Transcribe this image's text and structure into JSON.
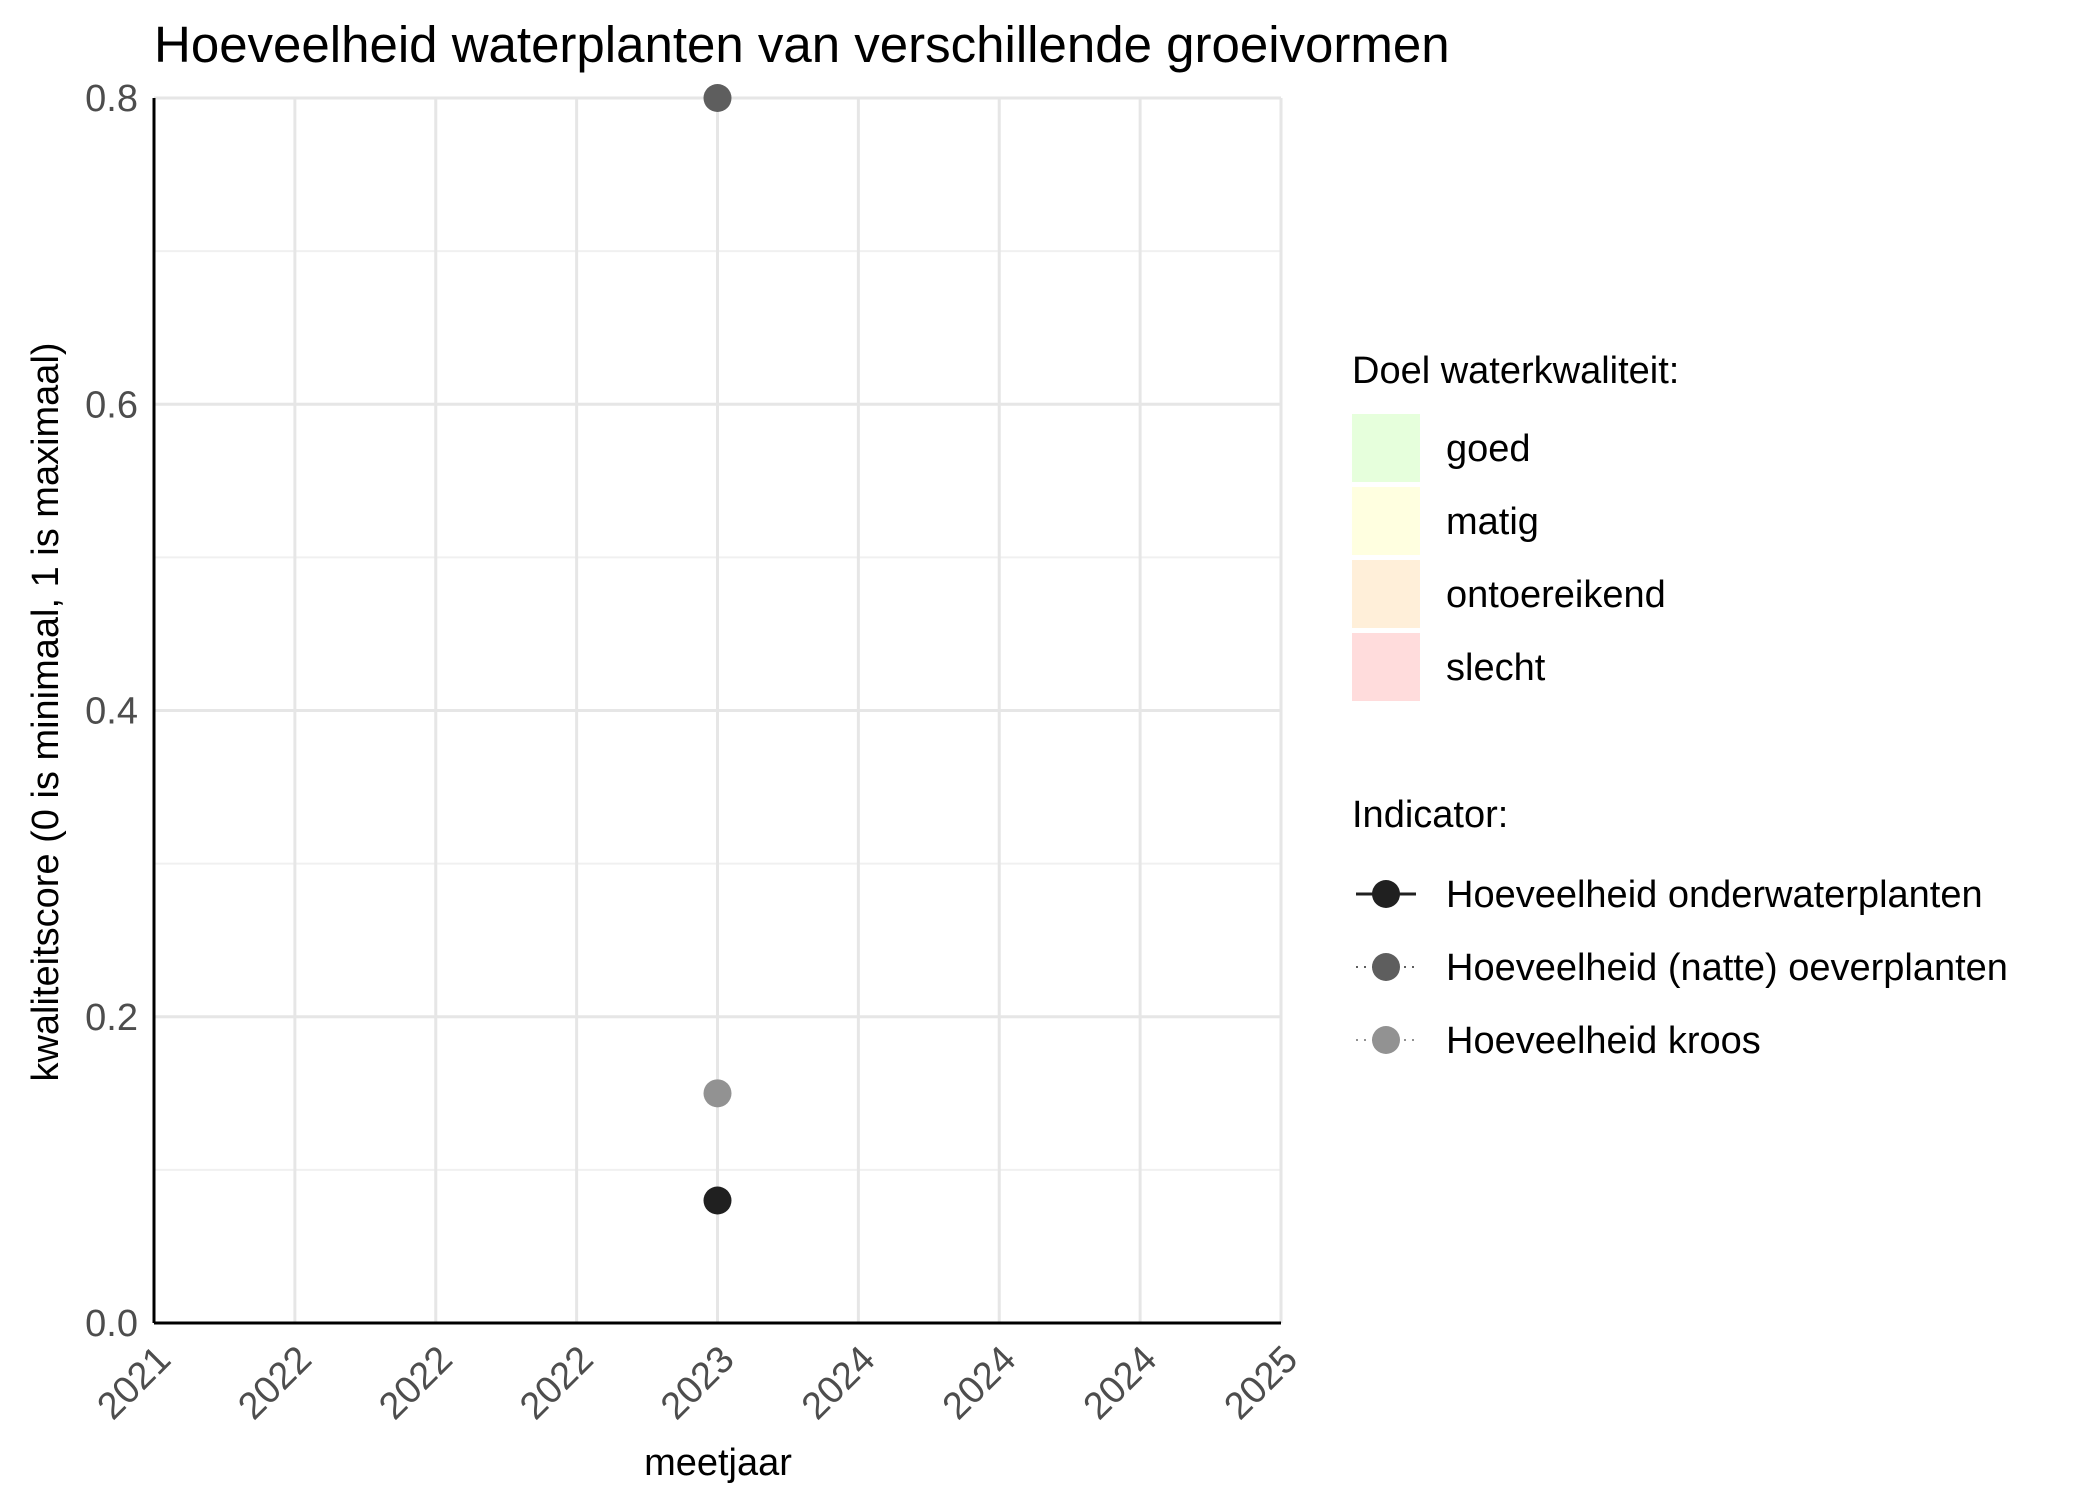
{
  "chart_data": {
    "type": "scatter",
    "title": "Hoeveelheid waterplanten van verschillende groeivormen",
    "xlabel": "meetjaar",
    "ylabel": "kwaliteitscore (0 is minimaal, 1 is maximaal)",
    "x_tick_labels": [
      "2021",
      "2022",
      "2022",
      "2022",
      "2023",
      "2024",
      "2024",
      "2024",
      "2025"
    ],
    "xlim": [
      0,
      8
    ],
    "ylim": [
      0,
      0.8
    ],
    "y_ticks": [
      0.0,
      0.2,
      0.4,
      0.6,
      0.8
    ],
    "y_tick_labels": [
      "0.0",
      "0.2",
      "0.4",
      "0.6",
      "0.8"
    ],
    "grid": true,
    "legend_position": "right",
    "quality_legend": {
      "title": "Doel waterkwaliteit:",
      "items": [
        {
          "label": "goed",
          "color": "#e6ffdc"
        },
        {
          "label": "matig",
          "color": "#ffffe0"
        },
        {
          "label": "ontoereikend",
          "color": "#ffefd9"
        },
        {
          "label": "slecht",
          "color": "#ffdcdc"
        }
      ]
    },
    "indicator_legend": {
      "title": "Indicator:"
    },
    "series": [
      {
        "name": "Hoeveelheid onderwaterplanten",
        "color": "#202020",
        "line": "solid",
        "points": [
          {
            "x": 4,
            "y": 0.08
          }
        ]
      },
      {
        "name": "Hoeveelheid (natte) oeverplanten",
        "color": "#5e5e5e",
        "line": "dotted",
        "points": [
          {
            "x": 4,
            "y": 0.8
          }
        ]
      },
      {
        "name": "Hoeveelheid kroos",
        "color": "#929292",
        "line": "dotted",
        "points": [
          {
            "x": 4,
            "y": 0.15
          }
        ]
      }
    ]
  }
}
